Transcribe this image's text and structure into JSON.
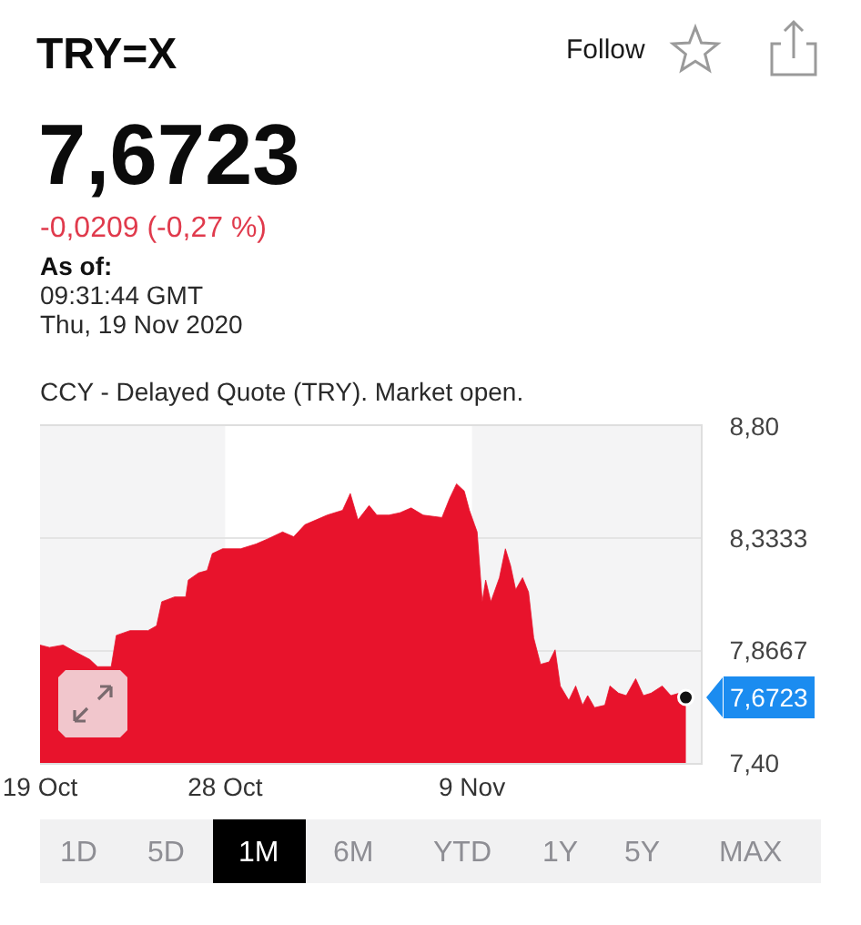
{
  "chart_data": {
    "type": "area",
    "title": "TRY=X",
    "subtitle": "7,6723",
    "annotations": [
      "Follow",
      "-0,0209 (-0,27 %)",
      "As of:",
      "09:31:44 GMT",
      "Thu, 19 Nov 2020",
      "CCY - Delayed Quote (TRY). Market open.",
      {
        "text": "7,6723",
        "x": "2020-11-19T09:31",
        "y": 7.6723
      },
      "1D",
      "5D",
      "1M",
      "6M",
      "YTD",
      "1Y",
      "5Y",
      "MAX"
    ],
    "x": [
      "2020-10-19T00:00",
      "2020-10-19T11:00",
      "2020-10-20T03:00",
      "2020-10-20T18:00",
      "2020-10-21T10:00",
      "2020-10-21T19:00",
      "2020-10-22T11:00",
      "2020-10-22T17:00",
      "2020-10-23T09:00",
      "2020-10-24T06:00",
      "2020-10-24T16:00",
      "2020-10-24T22:00",
      "2020-10-25T13:00",
      "2020-10-26T02:00",
      "2020-10-26T05:00",
      "2020-10-26T17:00",
      "2020-10-27T03:00",
      "2020-10-27T09:00",
      "2020-10-27T21:00",
      "2020-10-28T18:00",
      "2020-10-29T12:00",
      "2020-10-30T01:00",
      "2020-10-30T19:00",
      "2020-10-31T08:00",
      "2020-10-31T21:00",
      "2020-11-01T10:00",
      "2020-11-01T23:00",
      "2020-11-02T17:00",
      "2020-11-03T02:00",
      "2020-11-03T11:00",
      "2020-11-04T00:00",
      "2020-11-04T09:00",
      "2020-11-04T23:00",
      "2020-11-05T12:00",
      "2020-11-06T01:00",
      "2020-11-06T15:00",
      "2020-11-07T13:00",
      "2020-11-07T22:00",
      "2020-11-08T06:00",
      "2020-11-08T15:00",
      "2020-11-08T21:00",
      "2020-11-09T03:00",
      "2020-11-09T06:00",
      "2020-11-09T12:00",
      "2020-11-09T16:00",
      "2020-11-09T22:00",
      "2020-11-10T08:00",
      "2020-11-10T15:00",
      "2020-11-10T21:00",
      "2020-11-11T03:00",
      "2020-11-11T11:00",
      "2020-11-11T18:00",
      "2020-11-12T00:00",
      "2020-11-12T08:00",
      "2020-11-12T18:00",
      "2020-11-13T01:00",
      "2020-11-13T07:00",
      "2020-11-13T17:00",
      "2020-11-14T01:00",
      "2020-11-14T09:00",
      "2020-11-14T15:00",
      "2020-11-14T23:00",
      "2020-11-15T11:00",
      "2020-11-15T17:00",
      "2020-11-16T03:00",
      "2020-11-16T12:00",
      "2020-11-16T23:00",
      "2020-11-17T08:00",
      "2020-11-17T17:00",
      "2020-11-18T06:00",
      "2020-11-18T16:00",
      "2020-11-19T02:00",
      "2020-11-19T09:31"
    ],
    "series": [
      {
        "color": "#e8132c",
        "values": [
          7.89,
          7.88,
          7.89,
          7.86,
          7.83,
          7.8,
          7.8,
          7.93,
          7.95,
          7.95,
          7.97,
          8.07,
          8.09,
          8.09,
          8.16,
          8.19,
          8.2,
          8.27,
          8.29,
          8.29,
          8.31,
          8.33,
          8.36,
          8.34,
          8.39,
          8.41,
          8.43,
          8.45,
          8.52,
          8.41,
          8.47,
          8.43,
          8.43,
          8.44,
          8.46,
          8.43,
          8.42,
          8.5,
          8.56,
          8.53,
          8.45,
          8.39,
          8.36,
          8.07,
          8.16,
          8.07,
          8.17,
          8.29,
          8.22,
          8.12,
          8.17,
          8.11,
          7.92,
          7.81,
          7.82,
          7.87,
          7.72,
          7.66,
          7.72,
          7.64,
          7.68,
          7.63,
          7.64,
          7.72,
          7.69,
          7.68,
          7.75,
          7.68,
          7.69,
          7.72,
          7.68,
          7.69,
          7.6723
        ]
      }
    ],
    "xlim": [
      "2020-10-19",
      "2020-11-20T03:00"
    ],
    "xticks": [
      {
        "value": "2020-10-19",
        "label": "19 Oct"
      },
      {
        "value": "2020-10-28",
        "label": "28 Oct"
      },
      {
        "value": "2020-11-09",
        "label": "9 Nov"
      }
    ],
    "ylim": [
      7.4,
      8.8
    ],
    "yticks": [
      {
        "value": 8.8,
        "label": "8,80"
      },
      {
        "value": 8.3333,
        "label": "8,3333"
      },
      {
        "value": 7.8667,
        "label": "7,8667"
      },
      {
        "value": 7.4,
        "label": "7,40"
      }
    ],
    "grid": "y",
    "bands": [
      {
        "axis": "x",
        "from": "2020-10-19",
        "to": "2020-10-28",
        "color": "#f4f4f5"
      },
      {
        "axis": "x",
        "from": "2020-11-09",
        "to": "2020-11-20T03:00",
        "color": "#f4f4f5"
      }
    ]
  }
}
